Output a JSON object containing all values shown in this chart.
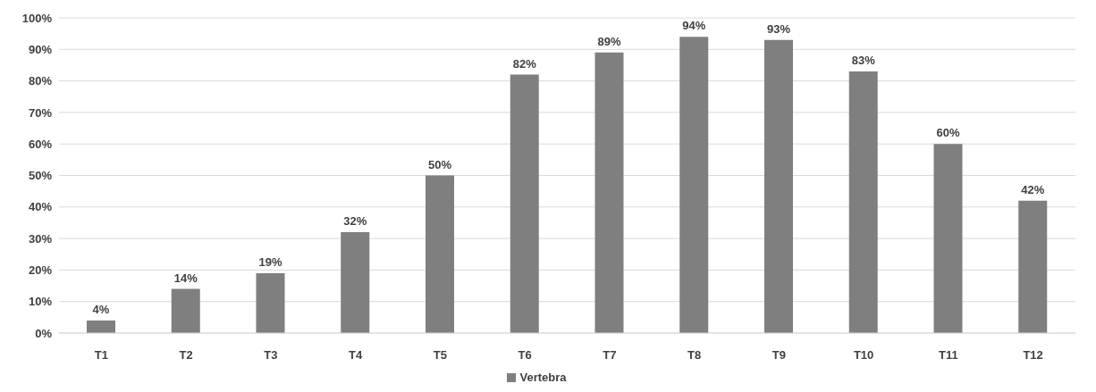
{
  "chart_data": {
    "type": "bar",
    "categories": [
      "T1",
      "T2",
      "T3",
      "T4",
      "T5",
      "T6",
      "T7",
      "T8",
      "T9",
      "T10",
      "T11",
      "T12"
    ],
    "series": [
      {
        "name": "Vertebra",
        "color": "#7f7f7f",
        "values": [
          4,
          14,
          19,
          32,
          50,
          82,
          89,
          94,
          93,
          83,
          60,
          42
        ],
        "value_labels": [
          "4%",
          "14%",
          "19%",
          "32%",
          "50%",
          "82%",
          "89%",
          "94%",
          "93%",
          "83%",
          "60%",
          "42%"
        ]
      }
    ],
    "ylim": [
      0,
      100
    ],
    "yticks": [
      {
        "value": 0,
        "label": "0%"
      },
      {
        "value": 10,
        "label": "10%"
      },
      {
        "value": 20,
        "label": "20%"
      },
      {
        "value": 30,
        "label": "30%"
      },
      {
        "value": 40,
        "label": "40%"
      },
      {
        "value": 50,
        "label": "50%"
      },
      {
        "value": 60,
        "label": "60%"
      },
      {
        "value": 70,
        "label": "70%"
      },
      {
        "value": 80,
        "label": "80%"
      },
      {
        "value": 90,
        "label": "90%"
      },
      {
        "value": 100,
        "label": "100%"
      }
    ],
    "grid": "y",
    "legend": "bottom"
  }
}
